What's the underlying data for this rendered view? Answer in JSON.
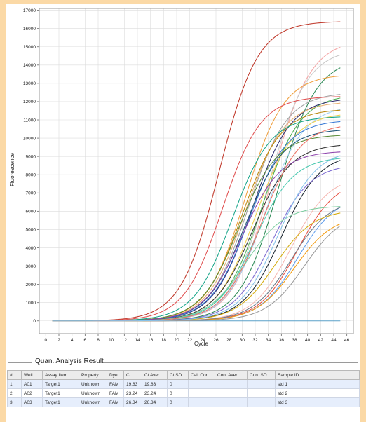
{
  "chart_data": {
    "type": "line",
    "title": "",
    "xlabel": "Cycle",
    "ylabel": "Fluorescence",
    "xlim": [
      -1,
      47
    ],
    "ylim": [
      -700,
      17100
    ],
    "x_ticks": [
      0,
      2,
      4,
      6,
      8,
      10,
      12,
      14,
      16,
      18,
      20,
      22,
      24,
      26,
      28,
      30,
      32,
      34,
      36,
      38,
      40,
      42,
      44,
      46
    ],
    "y_ticks": [
      0,
      1000,
      2000,
      3000,
      4000,
      5000,
      6000,
      7000,
      8000,
      9000,
      10000,
      11000,
      12000,
      13000,
      14000,
      15000,
      16000,
      17000
    ],
    "grid": true,
    "legend": "none",
    "x_range": [
      1,
      45
    ],
    "curve_model": "sigmoid amplification curves: plateau value and midpoint cycle",
    "series": [
      {
        "color": "#c0392b",
        "plateau": 16400,
        "midpoint": 26.5
      },
      {
        "color": "#f4a6a6",
        "plateau": 15400,
        "midpoint": 34.5
      },
      {
        "color": "#c8c8c8",
        "plateau": 14900,
        "midpoint": 34.0
      },
      {
        "color": "#2e8b57",
        "plateau": 14400,
        "midpoint": 35.5
      },
      {
        "color": "#f0a040",
        "plateau": 13500,
        "midpoint": 30.5
      },
      {
        "color": "#a0a0a0",
        "plateau": 12500,
        "midpoint": 31.0
      },
      {
        "color": "#4caf50",
        "plateau": 12400,
        "midpoint": 33.0
      },
      {
        "color": "#e05050",
        "plateau": 12300,
        "midpoint": 27.0
      },
      {
        "color": "#2c2c6c",
        "plateau": 12200,
        "midpoint": 31.5
      },
      {
        "color": "#e8b070",
        "plateau": 12000,
        "midpoint": 30.5
      },
      {
        "color": "#9ed0f0",
        "plateau": 11800,
        "midpoint": 33.5
      },
      {
        "color": "#b8860b",
        "plateau": 11600,
        "midpoint": 30.0
      },
      {
        "color": "#f2d24b",
        "plateau": 11400,
        "midpoint": 32.0
      },
      {
        "color": "#3a7bd5",
        "plateau": 11000,
        "midpoint": 31.0
      },
      {
        "color": "#1a5276",
        "plateau": 10500,
        "midpoint": 30.5
      },
      {
        "color": "#5b8c3a",
        "plateau": 10200,
        "midpoint": 29.5
      },
      {
        "color": "#333333",
        "plateau": 9700,
        "midpoint": 31.5
      },
      {
        "color": "#8e44ad",
        "plateau": 9300,
        "midpoint": 30.0
      },
      {
        "color": "#1b2631",
        "plateau": 9200,
        "midpoint": 36.0
      },
      {
        "color": "#48c9b0",
        "plateau": 9000,
        "midpoint": 32.0
      },
      {
        "color": "#7d6bd1",
        "plateau": 8600,
        "midpoint": 34.5
      },
      {
        "color": "#f5b7b1",
        "plateau": 8000,
        "midpoint": 37.5
      },
      {
        "color": "#e74c3c",
        "plateau": 7800,
        "midpoint": 38.5
      },
      {
        "color": "#5d9cec",
        "plateau": 6900,
        "midpoint": 38.5
      },
      {
        "color": "#6c7a89",
        "plateau": 6700,
        "midpoint": 37.5
      },
      {
        "color": "#7dcea0",
        "plateau": 6300,
        "midpoint": 30.5
      },
      {
        "color": "#d4ac0d",
        "plateau": 6100,
        "midpoint": 35.0
      },
      {
        "color": "#f39c12",
        "plateau": 5800,
        "midpoint": 38.0
      },
      {
        "color": "#9a9a9a",
        "plateau": 6000,
        "midpoint": 39.5
      },
      {
        "color": "#17a589",
        "plateau": 11200,
        "midpoint": 28.5
      },
      {
        "color": "#ec7063",
        "plateau": 10800,
        "midpoint": 33.0
      },
      {
        "color": "#85c1e9",
        "plateau": 9400,
        "midpoint": 35.5
      }
    ]
  },
  "results": {
    "section_title": "Quan. Analysis Result",
    "columns": [
      "#",
      "Well",
      "Assay Item",
      "Property",
      "Dye",
      "Ct",
      "Ct Aver.",
      "Ct SD",
      "Cal. Con.",
      "Con. Aver.",
      "Con. SD",
      "Sample ID"
    ],
    "rows": [
      [
        "1",
        "A01",
        "Target1",
        "Unknown",
        "FAM",
        "19.83",
        "19.83",
        "0",
        "",
        "",
        "",
        "std 1"
      ],
      [
        "2",
        "A02",
        "Target1",
        "Unknown",
        "FAM",
        "23.24",
        "23.24",
        "0",
        "",
        "",
        "",
        "std 2"
      ],
      [
        "3",
        "A03",
        "Target1",
        "Unknown",
        "FAM",
        "26.34",
        "26.34",
        "0",
        "",
        "",
        "",
        "std 3"
      ]
    ]
  },
  "colors": {
    "background": "#fbd9a6",
    "chart_background": "#ffffff",
    "grid": "#dcdcdc",
    "baseline": "#5aa0c8"
  }
}
